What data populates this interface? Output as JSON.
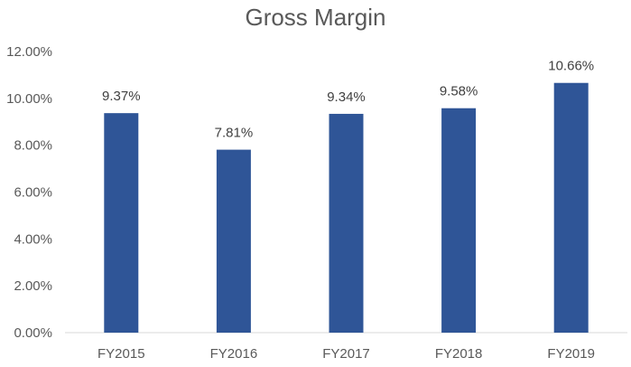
{
  "chart_data": {
    "type": "bar",
    "title": "Gross Margin",
    "xlabel": "",
    "ylabel": "",
    "categories": [
      "FY2015",
      "FY2016",
      "FY2017",
      "FY2018",
      "FY2019"
    ],
    "values": [
      9.37,
      7.81,
      9.34,
      9.58,
      10.66
    ],
    "data_labels": [
      "9.37%",
      "7.81%",
      "9.34%",
      "9.58%",
      "10.66%"
    ],
    "ylim": [
      0,
      12
    ],
    "yticks": [
      0,
      2,
      4,
      6,
      8,
      10,
      12
    ],
    "ytick_labels": [
      "0.00%",
      "2.00%",
      "4.00%",
      "6.00%",
      "8.00%",
      "10.00%",
      "12.00%"
    ],
    "grid": false,
    "legend": "none",
    "bar_color": "#2F5597",
    "axis_color": "#D9D9D9"
  }
}
